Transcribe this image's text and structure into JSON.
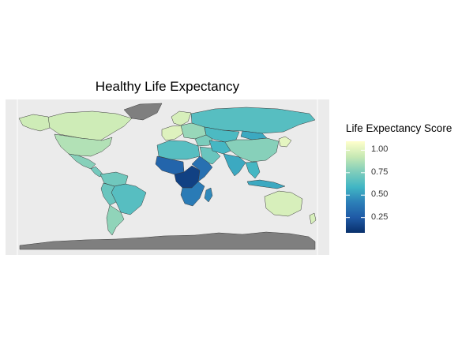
{
  "map": {
    "title": "Healthy Life Expectancy",
    "projection": "equirectangular world map",
    "background_color": "#ebebeb",
    "missing_color": "#7f7f7f",
    "border_color": "#3a3a3a"
  },
  "legend": {
    "title": "Life Expectancy Score",
    "palette": [
      "#08306b",
      "#1f5aa6",
      "#2c7fb8",
      "#41b6c4",
      "#7fcdbb",
      "#c7e9b4",
      "#ffffcc"
    ],
    "range": [
      0.08,
      1.1
    ],
    "ticks": [
      {
        "value": 1.0,
        "label": "1.00"
      },
      {
        "value": 0.75,
        "label": "0.75"
      },
      {
        "value": 0.5,
        "label": "0.50"
      },
      {
        "value": 0.25,
        "label": "0.25"
      }
    ]
  },
  "regions": [
    {
      "name": "canada",
      "score": 0.95
    },
    {
      "name": "alaska",
      "score": 0.95
    },
    {
      "name": "usa",
      "score": 0.88
    },
    {
      "name": "mexico",
      "score": 0.78
    },
    {
      "name": "central-america",
      "score": 0.73
    },
    {
      "name": "colombia-venezuela",
      "score": 0.72
    },
    {
      "name": "brazil",
      "score": 0.65
    },
    {
      "name": "peru-bolivia",
      "score": 0.7
    },
    {
      "name": "argentina-chile",
      "score": 0.8
    },
    {
      "name": "greenland",
      "score": null
    },
    {
      "name": "western-europe",
      "score": 1.0
    },
    {
      "name": "scandinavia",
      "score": 0.98
    },
    {
      "name": "eastern-europe",
      "score": 0.82
    },
    {
      "name": "russia",
      "score": 0.65
    },
    {
      "name": "central-asia",
      "score": 0.62
    },
    {
      "name": "mongolia",
      "score": 0.55
    },
    {
      "name": "china",
      "score": 0.78
    },
    {
      "name": "korea-japan",
      "score": 1.02
    },
    {
      "name": "middle-east",
      "score": 0.75
    },
    {
      "name": "arabian-peninsula",
      "score": 0.7
    },
    {
      "name": "iran-afghanistan",
      "score": 0.6
    },
    {
      "name": "india",
      "score": 0.55
    },
    {
      "name": "southeast-asia",
      "score": 0.6
    },
    {
      "name": "indonesia",
      "score": 0.55
    },
    {
      "name": "north-africa",
      "score": 0.65
    },
    {
      "name": "west-africa",
      "score": 0.3
    },
    {
      "name": "central-africa",
      "score": 0.15
    },
    {
      "name": "east-africa",
      "score": 0.35
    },
    {
      "name": "southern-africa",
      "score": 0.4
    },
    {
      "name": "madagascar",
      "score": 0.45
    },
    {
      "name": "australia",
      "score": 0.98
    },
    {
      "name": "new-zealand",
      "score": 0.98
    },
    {
      "name": "antarctica",
      "score": null
    }
  ]
}
